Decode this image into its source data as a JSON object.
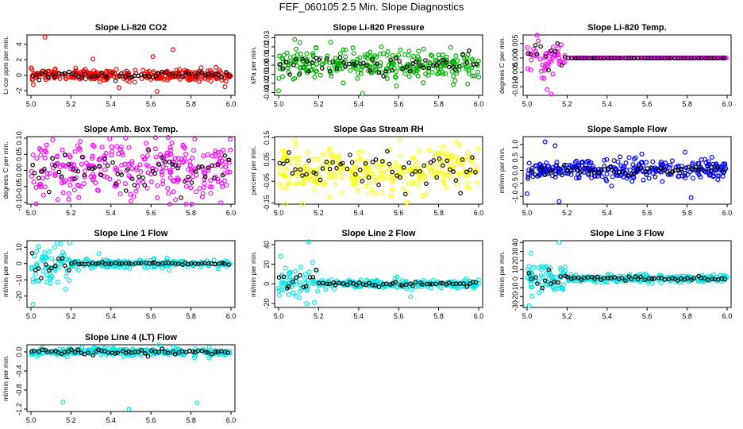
{
  "figure": {
    "title": "FEF_060105  2.5 Min. Slope Diagnostics"
  },
  "chart_data": [
    {
      "id": "co2",
      "type": "scatter",
      "title": "Slope Li-820 CO2",
      "ylabel": "Li-cor ppm per min.",
      "color": "#ff0000",
      "xlim": [
        4.98,
        6.02
      ],
      "ylim": [
        -2.6,
        5.2
      ],
      "xticks": [
        5.0,
        5.2,
        5.4,
        5.6,
        5.8,
        6.0
      ],
      "yticks": [
        -2,
        0,
        2,
        4
      ],
      "ytick_labels": [
        "-2",
        "0",
        "2",
        "4"
      ],
      "series": {
        "baseline": 0.0,
        "noise_primary": 0.35,
        "noise_secondary": 0.25,
        "outliers": [
          [
            5.07,
            4.9
          ],
          [
            5.31,
            2.1
          ],
          [
            5.61,
            2.4
          ],
          [
            5.71,
            3.3
          ],
          [
            5.44,
            -1.6
          ],
          [
            5.63,
            -2.1
          ],
          [
            5.97,
            -1.5
          ]
        ]
      }
    },
    {
      "id": "pressure",
      "type": "scatter",
      "title": "Slope Li-820 Pressure",
      "ylabel": "kPa per min.",
      "color": "#00b000",
      "xlim": [
        4.98,
        6.02
      ],
      "ylim": [
        -0.033,
        0.033
      ],
      "xticks": [
        5.0,
        5.2,
        5.4,
        5.6,
        5.8,
        6.0
      ],
      "yticks": [
        -0.03,
        -0.02,
        -0.01,
        0.0,
        0.01,
        0.02,
        0.03
      ],
      "ytick_labels": [
        "-0.03",
        "-0.02",
        "-0.01",
        "0.00",
        "0.01",
        "0.02",
        "0.03"
      ],
      "series": {
        "baseline": 0.0,
        "noise_primary": 0.008,
        "noise_secondary": 0.005,
        "outliers": [
          [
            5.08,
            0.028
          ],
          [
            5.0,
            -0.028
          ],
          [
            5.42,
            -0.031
          ],
          [
            5.26,
            0.025
          ],
          [
            6.0,
            -0.013
          ]
        ]
      }
    },
    {
      "id": "temp",
      "type": "scatter",
      "title": "Slope Li-820 Temp.",
      "ylabel": "degrees C per min.",
      "color": "#ff00ff",
      "xlim": [
        4.98,
        6.02
      ],
      "ylim": [
        -0.013,
        0.008
      ],
      "xticks": [
        5.0,
        5.2,
        5.4,
        5.6,
        5.8,
        6.0
      ],
      "yticks": [
        -0.01,
        -0.005,
        0.0,
        0.005
      ],
      "ytick_labels": [
        "-0.010",
        "-0.005",
        "0.000",
        "0.005"
      ],
      "series": {
        "baseline": 0.0,
        "noise_primary": 0.0,
        "noise_secondary": 0.0,
        "settle_until": 5.2,
        "early_noise": 0.004,
        "outliers": [
          [
            5.05,
            0.0079
          ],
          [
            5.12,
            -0.0125
          ],
          [
            5.1,
            -0.011
          ]
        ]
      }
    },
    {
      "id": "boxtemp",
      "type": "scatter",
      "title": "Slope Amb. Box Temp.",
      "ylabel": "degrees C per min.",
      "color": "#ff00ff",
      "xlim": [
        4.98,
        6.02
      ],
      "ylim": [
        -0.105,
        0.105
      ],
      "xticks": [
        5.0,
        5.2,
        5.4,
        5.6,
        5.8,
        6.0
      ],
      "yticks": [
        -0.1,
        -0.05,
        0.0,
        0.05,
        0.1
      ],
      "ytick_labels": [
        "-0.10",
        "-0.05",
        "0.00",
        "0.05",
        "0.10"
      ],
      "series": {
        "baseline": 0.0,
        "noise_primary": 0.045,
        "noise_secondary": 0.03,
        "outliers": []
      }
    },
    {
      "id": "rh",
      "type": "scatter",
      "title": "Slope Gas Stream RH",
      "ylabel": "percent per min.",
      "color": "#ffff00",
      "xlim": [
        4.98,
        6.02
      ],
      "ylim": [
        -0.155,
        0.155
      ],
      "xticks": [
        5.0,
        5.2,
        5.4,
        5.6,
        5.8,
        6.0
      ],
      "yticks": [
        -0.15,
        -0.05,
        0.05,
        0.15
      ],
      "ytick_labels": [
        "-0.15",
        "-0.05",
        "0.05",
        "0.15"
      ],
      "series": {
        "baseline": 0.0,
        "noise_primary": 0.05,
        "noise_secondary": 0.045,
        "outliers": [
          [
            5.12,
            -0.155
          ],
          [
            5.08,
            0.14
          ]
        ]
      }
    },
    {
      "id": "sampleflow",
      "type": "scatter",
      "title": "Slope Sample Flow",
      "ylabel": "ml/min per min.",
      "color": "#0000ff",
      "xlim": [
        4.98,
        6.02
      ],
      "ylim": [
        -1.3,
        1.3
      ],
      "xticks": [
        5.0,
        5.2,
        5.4,
        5.6,
        5.8,
        6.0
      ],
      "yticks": [
        -1.0,
        -0.5,
        0.0,
        0.5,
        1.0
      ],
      "ytick_labels": [
        "-1.0",
        "-0.5",
        "0.0",
        "0.5",
        "1.0"
      ],
      "series": {
        "baseline": 0.0,
        "noise_primary": 0.2,
        "noise_secondary": 0.15,
        "outliers": [
          [
            5.09,
            1.1
          ],
          [
            5.16,
            -1.2
          ],
          [
            5.0,
            -0.9
          ],
          [
            5.14,
            0.95
          ],
          [
            5.79,
            0.7
          ],
          [
            5.82,
            -1.05
          ]
        ]
      }
    },
    {
      "id": "line1",
      "type": "scatter",
      "title": "Slope Line 1 Flow",
      "ylabel": "ml/min per min.",
      "color": "#00e5e5",
      "xlim": [
        4.98,
        6.02
      ],
      "ylim": [
        -27,
        14
      ],
      "xticks": [
        5.0,
        5.2,
        5.4,
        5.6,
        5.8,
        6.0
      ],
      "yticks": [
        -20,
        -10,
        0,
        10
      ],
      "ytick_labels": [
        "-20",
        "-10",
        "0",
        "10"
      ],
      "series": {
        "baseline": 0.0,
        "noise_primary": 1.2,
        "noise_secondary": 0.3,
        "settle_until": 5.2,
        "early_noise": 6,
        "outliers": [
          [
            5.01,
            -25
          ],
          [
            5.15,
            12
          ],
          [
            5.34,
            6
          ]
        ]
      }
    },
    {
      "id": "line2",
      "type": "scatter",
      "title": "Slope Line 2 Flow",
      "ylabel": "ml/min per min.",
      "color": "#00e5e5",
      "xlim": [
        4.98,
        6.02
      ],
      "ylim": [
        -24,
        44
      ],
      "xticks": [
        5.0,
        5.2,
        5.4,
        5.6,
        5.8,
        6.0
      ],
      "yticks": [
        -20,
        0,
        20,
        40
      ],
      "ytick_labels": [
        "-20",
        "0",
        "20",
        "40"
      ],
      "series": {
        "baseline": 0.0,
        "noise_primary": 2.0,
        "noise_secondary": 1.2,
        "settle_until": 5.2,
        "early_noise": 9,
        "outliers": [
          [
            5.15,
            43
          ],
          [
            5.01,
            28
          ],
          [
            5.14,
            -20
          ],
          [
            5.66,
            -13
          ]
        ]
      }
    },
    {
      "id": "line3",
      "type": "scatter",
      "title": "Slope Line 3 Flow",
      "ylabel": "ml/min per min.",
      "color": "#00e5e5",
      "xlim": [
        4.98,
        6.02
      ],
      "ylim": [
        -32,
        42
      ],
      "xticks": [
        5.0,
        5.2,
        5.4,
        5.6,
        5.8,
        6.0
      ],
      "yticks": [
        -30,
        -20,
        -10,
        0,
        10,
        20,
        30,
        40
      ],
      "ytick_labels": [
        "-30",
        "-20",
        "-10",
        "0",
        "10",
        "20",
        "30",
        "40"
      ],
      "series": {
        "baseline": 0.0,
        "noise_primary": 2.0,
        "noise_secondary": 1.2,
        "settle_until": 5.2,
        "early_noise": 9,
        "outliers": [
          [
            5.01,
            -30
          ],
          [
            5.16,
            40
          ],
          [
            5.02,
            28
          ],
          [
            5.14,
            -12
          ]
        ]
      }
    },
    {
      "id": "line4",
      "type": "scatter",
      "title": "Slope Line 4 (LT) Flow",
      "ylabel": "ml/min per min.",
      "color": "#00e5e5",
      "xlim": [
        4.98,
        6.02
      ],
      "ylim": [
        -1.25,
        0.15
      ],
      "xticks": [
        5.0,
        5.2,
        5.4,
        5.6,
        5.8,
        6.0
      ],
      "yticks": [
        -1.2,
        -0.8,
        -0.4,
        0.0
      ],
      "ytick_labels": [
        "-1.2",
        "-0.8",
        "-0.4",
        "0.0"
      ],
      "series": {
        "baseline": 0.0,
        "noise_primary": 0.04,
        "noise_secondary": 0.03,
        "outliers": [
          [
            5.16,
            -1.05
          ],
          [
            5.49,
            -1.2
          ],
          [
            5.83,
            -1.07
          ]
        ]
      }
    }
  ]
}
